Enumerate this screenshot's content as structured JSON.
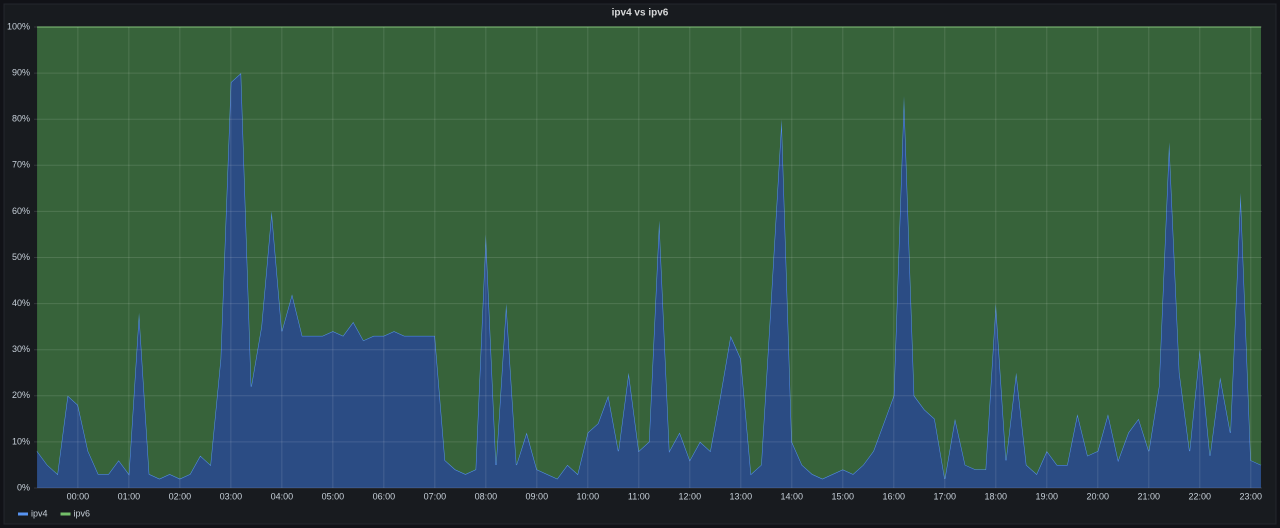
{
  "chart_data": {
    "type": "stacked_area",
    "title": "ipv4 vs ipv6",
    "x": [
      -0.8,
      -0.6,
      -0.4,
      -0.2,
      0,
      0.2,
      0.4,
      0.6,
      0.8,
      1,
      1.2,
      1.4,
      1.6,
      1.8,
      2,
      2.2,
      2.4,
      2.6,
      2.8,
      3,
      3.2,
      3.4,
      3.6,
      3.8,
      4,
      4.2,
      4.4,
      4.6,
      4.8,
      5,
      5.2,
      5.4,
      5.6,
      5.8,
      6,
      6.2,
      6.4,
      6.6,
      6.8,
      7,
      7.2,
      7.4,
      7.6,
      7.8,
      8,
      8.2,
      8.4,
      8.6,
      8.8,
      9,
      9.2,
      9.4,
      9.6,
      9.8,
      10,
      10.2,
      10.4,
      10.6,
      10.8,
      11,
      11.2,
      11.4,
      11.6,
      11.8,
      12,
      12.2,
      12.4,
      12.6,
      12.8,
      13,
      13.2,
      13.4,
      13.6,
      13.8,
      14,
      14.2,
      14.4,
      14.6,
      14.8,
      15,
      15.2,
      15.4,
      15.6,
      15.8,
      16,
      16.2,
      16.4,
      16.6,
      16.8,
      17,
      17.2,
      17.4,
      17.6,
      17.8,
      18,
      18.2,
      18.4,
      18.6,
      18.8,
      19,
      19.2,
      19.4,
      19.6,
      19.8,
      20,
      20.2,
      20.4,
      20.6,
      20.8,
      21,
      21.2,
      21.4,
      21.6,
      21.8,
      22,
      22.2,
      22.4,
      22.6,
      22.8,
      23,
      23.2
    ],
    "series": [
      {
        "name": "ipv4",
        "color": "#5794f2",
        "fill": "#2b4c84",
        "values": [
          8,
          5,
          3,
          20,
          18,
          8,
          3,
          3,
          6,
          3,
          38,
          3,
          2,
          3,
          2,
          3,
          7,
          5,
          28,
          88,
          90,
          22,
          35,
          60,
          34,
          42,
          33,
          33,
          33,
          34,
          33,
          36,
          32,
          33,
          33,
          34,
          33,
          33,
          33,
          33,
          6,
          4,
          3,
          4,
          55,
          5,
          40,
          5,
          12,
          4,
          3,
          2,
          5,
          3,
          12,
          14,
          20,
          8,
          25,
          8,
          10,
          58,
          8,
          12,
          6,
          10,
          8,
          20,
          33,
          28,
          3,
          5,
          42,
          80,
          10,
          5,
          3,
          2,
          3,
          4,
          3,
          5,
          8,
          14,
          20,
          85,
          20,
          17,
          15,
          2,
          15,
          5,
          4,
          4,
          40,
          6,
          25,
          5,
          3,
          8,
          5,
          5,
          16,
          7,
          8,
          16,
          6,
          12,
          15,
          8,
          22,
          75,
          25,
          8,
          30,
          7,
          24,
          12,
          64,
          6,
          5
        ]
      },
      {
        "name": "ipv6",
        "color": "#73bf69",
        "fill": "#37633a",
        "values": [
          92,
          95,
          97,
          80,
          82,
          92,
          97,
          97,
          94,
          97,
          62,
          97,
          98,
          97,
          98,
          97,
          93,
          95,
          72,
          12,
          10,
          78,
          65,
          40,
          66,
          58,
          67,
          67,
          67,
          66,
          67,
          64,
          68,
          67,
          67,
          66,
          67,
          67,
          67,
          67,
          94,
          96,
          97,
          96,
          45,
          95,
          60,
          95,
          88,
          96,
          97,
          98,
          95,
          97,
          88,
          86,
          80,
          92,
          75,
          92,
          90,
          42,
          92,
          88,
          94,
          90,
          92,
          80,
          67,
          72,
          97,
          95,
          58,
          20,
          90,
          95,
          97,
          98,
          97,
          96,
          97,
          95,
          92,
          86,
          80,
          15,
          80,
          83,
          85,
          98,
          85,
          95,
          96,
          96,
          60,
          94,
          75,
          95,
          97,
          92,
          95,
          95,
          84,
          93,
          92,
          84,
          94,
          88,
          85,
          92,
          78,
          25,
          75,
          92,
          70,
          93,
          76,
          88,
          36,
          94,
          95
        ]
      }
    ],
    "xlim": [
      -0.86,
      23.22
    ],
    "xticks": [
      {
        "value": 0,
        "label": "00:00"
      },
      {
        "value": 1,
        "label": "01:00"
      },
      {
        "value": 2,
        "label": "02:00"
      },
      {
        "value": 3,
        "label": "03:00"
      },
      {
        "value": 4,
        "label": "04:00"
      },
      {
        "value": 5,
        "label": "05:00"
      },
      {
        "value": 6,
        "label": "06:00"
      },
      {
        "value": 7,
        "label": "07:00"
      },
      {
        "value": 8,
        "label": "08:00"
      },
      {
        "value": 9,
        "label": "09:00"
      },
      {
        "value": 10,
        "label": "10:00"
      },
      {
        "value": 11,
        "label": "11:00"
      },
      {
        "value": 12,
        "label": "12:00"
      },
      {
        "value": 13,
        "label": "13:00"
      },
      {
        "value": 14,
        "label": "14:00"
      },
      {
        "value": 15,
        "label": "15:00"
      },
      {
        "value": 16,
        "label": "16:00"
      },
      {
        "value": 17,
        "label": "17:00"
      },
      {
        "value": 18,
        "label": "18:00"
      },
      {
        "value": 19,
        "label": "19:00"
      },
      {
        "value": 20,
        "label": "20:00"
      },
      {
        "value": 21,
        "label": "21:00"
      },
      {
        "value": 22,
        "label": "22:00"
      },
      {
        "value": 23,
        "label": "23:00"
      }
    ],
    "ylim": [
      0,
      100
    ],
    "yticks": [
      {
        "value": 0,
        "label": "0%"
      },
      {
        "value": 10,
        "label": "10%"
      },
      {
        "value": 20,
        "label": "20%"
      },
      {
        "value": 30,
        "label": "30%"
      },
      {
        "value": 40,
        "label": "40%"
      },
      {
        "value": 50,
        "label": "50%"
      },
      {
        "value": 60,
        "label": "60%"
      },
      {
        "value": 70,
        "label": "70%"
      },
      {
        "value": 80,
        "label": "80%"
      },
      {
        "value": 90,
        "label": "90%"
      },
      {
        "value": 100,
        "label": "100%"
      }
    ],
    "grid": true,
    "legend": "bottom-left"
  }
}
